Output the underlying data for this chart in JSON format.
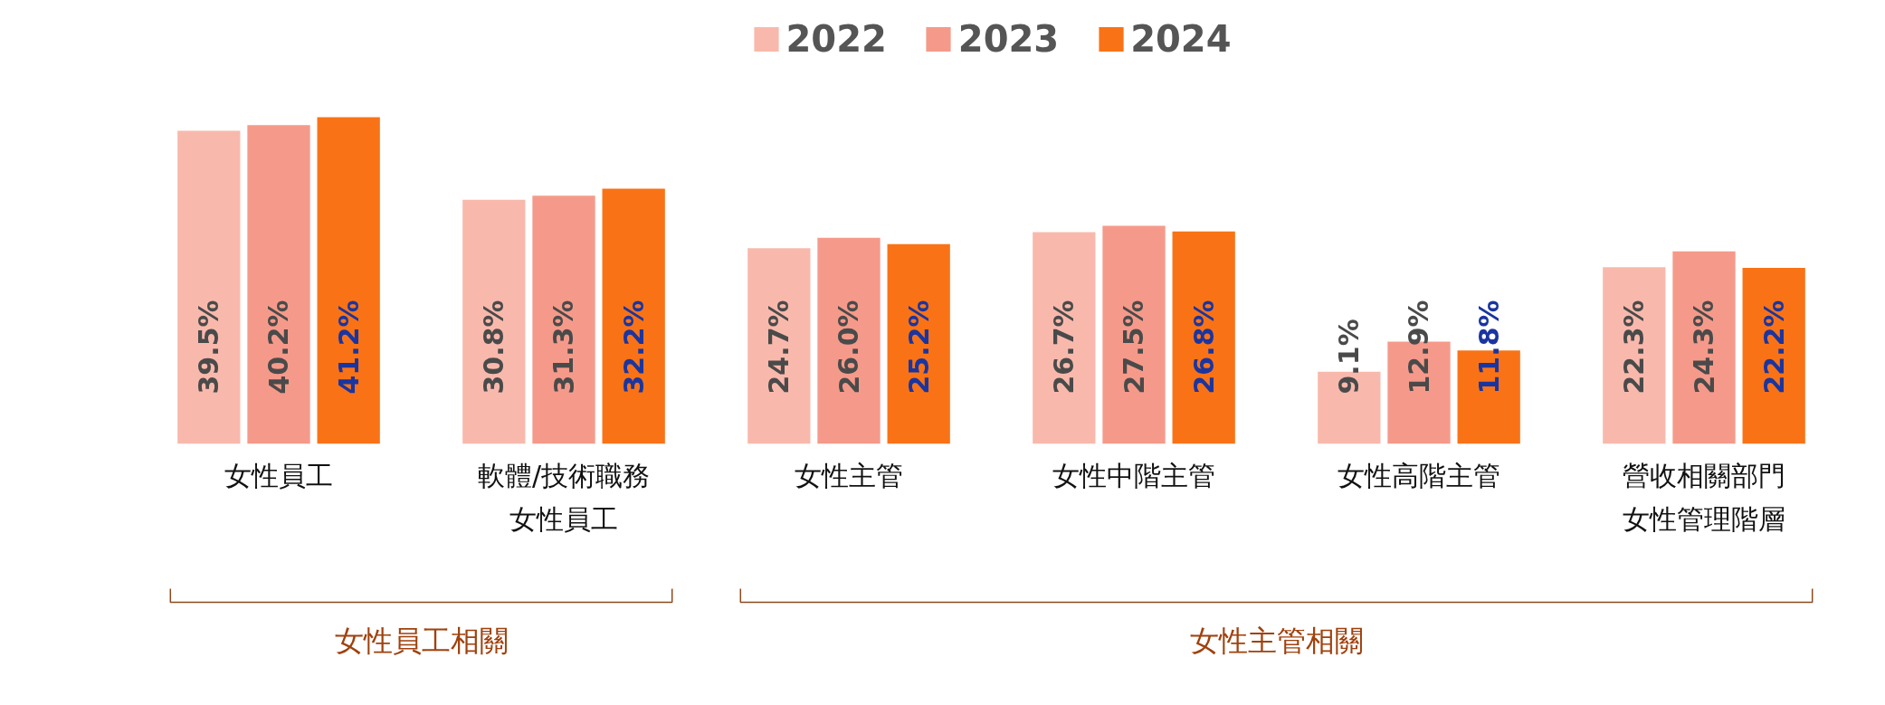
{
  "chart_data": {
    "type": "bar",
    "categories": [
      "女性員工",
      "軟體/技術職務女性員工",
      "女性主管",
      "女性中階主管",
      "女性高階主管",
      "營收相關部門女性管理階層"
    ],
    "series": [
      {
        "name": "2022",
        "color": "#f8b9ac",
        "values": [
          39.5,
          30.8,
          24.7,
          26.7,
          9.1,
          22.3
        ],
        "value_labels": [
          "39.5%",
          "30.8%",
          "24.7%",
          "26.7%",
          "9.1%",
          "22.3%"
        ]
      },
      {
        "name": "2023",
        "color": "#f59a8a",
        "values": [
          40.2,
          31.3,
          26.0,
          27.5,
          12.9,
          24.3
        ],
        "value_labels": [
          "40.2%",
          "31.3%",
          "26.0%",
          "27.5%",
          "12.9%",
          "24.3%"
        ]
      },
      {
        "name": "2024",
        "color": "#f97316",
        "values": [
          41.2,
          32.2,
          25.2,
          26.8,
          11.8,
          22.2
        ],
        "value_labels": [
          "41.2%",
          "32.2%",
          "25.2%",
          "26.8%",
          "11.8%",
          "22.2%"
        ]
      }
    ],
    "legend": "top",
    "grid": false,
    "annotations": [
      "女性員工相關",
      "女性主管相關"
    ]
  }
}
